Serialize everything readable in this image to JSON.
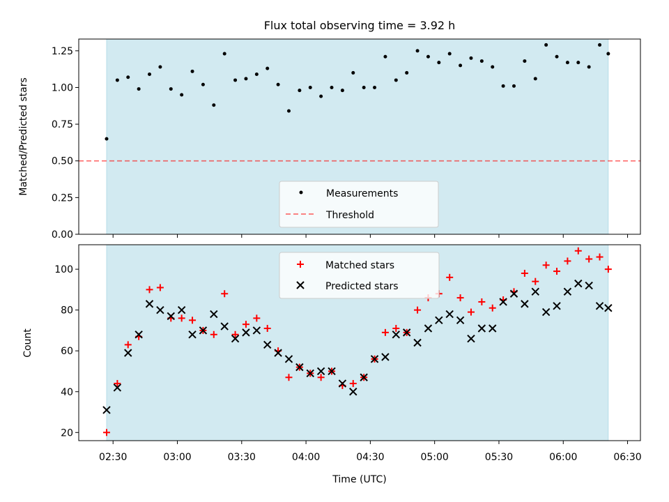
{
  "figure_title": "Flux total observing time = 3.92 h",
  "colors": {
    "span": "#add8e6",
    "measurement": "#000000",
    "threshold": "#ff0000",
    "matched": "#ff0000",
    "predicted": "#000000"
  },
  "chart_data": [
    {
      "type": "scatter",
      "title": "Flux total observing time = 3.92 h",
      "xlabel": "",
      "ylabel": "Matched/Predicted stars",
      "xlim": [
        "02:14",
        "06:36"
      ],
      "ylim": [
        0,
        1.33
      ],
      "yticks": [
        0.0,
        0.25,
        0.5,
        0.75,
        1.0,
        1.25
      ],
      "ytick_labels": [
        "0.00",
        "0.25",
        "0.50",
        "0.75",
        "1.00",
        "1.25"
      ],
      "xticks": [
        "02:30",
        "03:00",
        "03:30",
        "04:00",
        "04:30",
        "05:00",
        "05:30",
        "06:00",
        "06:30"
      ],
      "shaded_span": [
        "02:27",
        "06:21"
      ],
      "threshold": 0.5,
      "legend_position": "lower center",
      "legend": [
        "Measurements",
        "Threshold"
      ],
      "x": [
        "02:27",
        "02:32",
        "02:37",
        "02:42",
        "02:47",
        "02:52",
        "02:57",
        "03:02",
        "03:07",
        "03:12",
        "03:17",
        "03:22",
        "03:27",
        "03:32",
        "03:37",
        "03:42",
        "03:47",
        "03:52",
        "03:57",
        "04:02",
        "04:07",
        "04:12",
        "04:17",
        "04:22",
        "04:27",
        "04:32",
        "04:37",
        "04:42",
        "04:47",
        "04:52",
        "04:57",
        "05:02",
        "05:07",
        "05:12",
        "05:17",
        "05:22",
        "05:27",
        "05:32",
        "05:37",
        "05:42",
        "05:47",
        "05:52",
        "05:57",
        "06:02",
        "06:07",
        "06:12",
        "06:17",
        "06:21"
      ],
      "series": [
        {
          "name": "Measurements",
          "values": [
            0.65,
            1.05,
            1.07,
            0.99,
            1.09,
            1.14,
            0.99,
            0.95,
            1.11,
            1.02,
            0.88,
            1.23,
            1.05,
            1.06,
            1.09,
            1.13,
            1.02,
            0.84,
            0.98,
            1.0,
            0.94,
            1.0,
            0.98,
            1.1,
            1.0,
            1.0,
            1.21,
            1.05,
            1.1,
            1.25,
            1.21,
            1.17,
            1.23,
            1.15,
            1.2,
            1.18,
            1.14,
            1.01,
            1.01,
            1.18,
            1.06,
            1.29,
            1.21,
            1.17,
            1.17,
            1.14,
            1.29,
            1.23
          ]
        }
      ]
    },
    {
      "type": "scatter",
      "title": "",
      "xlabel": "Time (UTC)",
      "ylabel": "Count",
      "xlim": [
        "02:14",
        "06:36"
      ],
      "ylim": [
        16,
        112
      ],
      "yticks": [
        20,
        40,
        60,
        80,
        100
      ],
      "ytick_labels": [
        "20",
        "40",
        "60",
        "80",
        "100"
      ],
      "xticks": [
        "02:30",
        "03:00",
        "03:30",
        "04:00",
        "04:30",
        "05:00",
        "05:30",
        "06:00",
        "06:30"
      ],
      "shaded_span": [
        "02:27",
        "06:21"
      ],
      "legend_position": "upper center",
      "legend": [
        "Matched stars",
        "Predicted stars"
      ],
      "x": [
        "02:27",
        "02:32",
        "02:37",
        "02:42",
        "02:47",
        "02:52",
        "02:57",
        "03:02",
        "03:07",
        "03:12",
        "03:17",
        "03:22",
        "03:27",
        "03:32",
        "03:37",
        "03:42",
        "03:47",
        "03:52",
        "03:57",
        "04:02",
        "04:07",
        "04:12",
        "04:17",
        "04:22",
        "04:27",
        "04:32",
        "04:37",
        "04:42",
        "04:47",
        "04:52",
        "04:57",
        "05:02",
        "05:07",
        "05:12",
        "05:17",
        "05:22",
        "05:27",
        "05:32",
        "05:37",
        "05:42",
        "05:47",
        "05:52",
        "05:57",
        "06:02",
        "06:07",
        "06:12",
        "06:17",
        "06:21"
      ],
      "series": [
        {
          "name": "Matched stars",
          "marker": "plus",
          "values": [
            20,
            44,
            63,
            67,
            90,
            91,
            76,
            76,
            75,
            70,
            68,
            88,
            68,
            73,
            76,
            71,
            60,
            47,
            52,
            49,
            47,
            50,
            43,
            44,
            47,
            56,
            69,
            71,
            69,
            80,
            86,
            88,
            96,
            86,
            79,
            84,
            81,
            85,
            89,
            98,
            94,
            102,
            99,
            104,
            109,
            105,
            106,
            100
          ]
        },
        {
          "name": "Predicted stars",
          "marker": "x",
          "values": [
            31,
            42,
            59,
            68,
            83,
            80,
            77,
            80,
            68,
            70,
            78,
            72,
            66,
            69,
            70,
            63,
            59,
            56,
            52,
            49,
            50,
            50,
            44,
            40,
            47,
            56,
            57,
            68,
            69,
            64,
            71,
            75,
            78,
            75,
            66,
            71,
            71,
            84,
            88,
            83,
            89,
            79,
            82,
            89,
            93,
            92,
            82,
            81
          ]
        }
      ]
    }
  ]
}
